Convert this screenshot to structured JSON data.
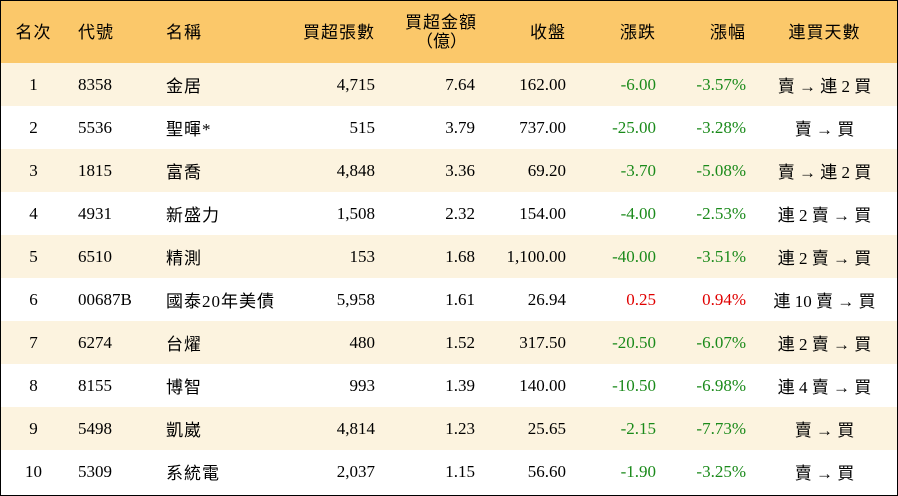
{
  "headers": {
    "rank": "名次",
    "code": "代號",
    "name": "名稱",
    "net_buy_lots": "買超張數",
    "net_buy_amount": "買超金額",
    "net_buy_amount_unit": "（億）",
    "close": "收盤",
    "change": "漲跌",
    "change_pct": "漲幅",
    "consecutive_days": "連買天數"
  },
  "rows": [
    {
      "rank": "1",
      "code": "8358",
      "name": "金居",
      "lots": "4,715",
      "amount": "7.64",
      "close": "162.00",
      "change": "-6.00",
      "pct": "-3.57%",
      "days": "賣 → 連 2 買",
      "dir": "neg"
    },
    {
      "rank": "2",
      "code": "5536",
      "name": "聖暉*",
      "lots": "515",
      "amount": "3.79",
      "close": "737.00",
      "change": "-25.00",
      "pct": "-3.28%",
      "days": "賣 → 買",
      "dir": "neg"
    },
    {
      "rank": "3",
      "code": "1815",
      "name": "富喬",
      "lots": "4,848",
      "amount": "3.36",
      "close": "69.20",
      "change": "-3.70",
      "pct": "-5.08%",
      "days": "賣 → 連 2 買",
      "dir": "neg"
    },
    {
      "rank": "4",
      "code": "4931",
      "name": "新盛力",
      "lots": "1,508",
      "amount": "2.32",
      "close": "154.00",
      "change": "-4.00",
      "pct": "-2.53%",
      "days": "連 2 賣 → 買",
      "dir": "neg"
    },
    {
      "rank": "5",
      "code": "6510",
      "name": "精測",
      "lots": "153",
      "amount": "1.68",
      "close": "1,100.00",
      "change": "-40.00",
      "pct": "-3.51%",
      "days": "連 2 賣 → 買",
      "dir": "neg"
    },
    {
      "rank": "6",
      "code": "00687B",
      "name": "國泰20年美債",
      "lots": "5,958",
      "amount": "1.61",
      "close": "26.94",
      "change": "0.25",
      "pct": "0.94%",
      "days": "連 10 賣 → 買",
      "dir": "pos"
    },
    {
      "rank": "7",
      "code": "6274",
      "name": "台燿",
      "lots": "480",
      "amount": "1.52",
      "close": "317.50",
      "change": "-20.50",
      "pct": "-6.07%",
      "days": "連 2 賣 → 買",
      "dir": "neg"
    },
    {
      "rank": "8",
      "code": "8155",
      "name": "博智",
      "lots": "993",
      "amount": "1.39",
      "close": "140.00",
      "change": "-10.50",
      "pct": "-6.98%",
      "days": "連 4 賣 → 買",
      "dir": "neg"
    },
    {
      "rank": "9",
      "code": "5498",
      "name": "凱崴",
      "lots": "4,814",
      "amount": "1.23",
      "close": "25.65",
      "change": "-2.15",
      "pct": "-7.73%",
      "days": "賣 → 買",
      "dir": "neg"
    },
    {
      "rank": "10",
      "code": "5309",
      "name": "系統電",
      "lots": "2,037",
      "amount": "1.15",
      "close": "56.60",
      "change": "-1.90",
      "pct": "-3.25%",
      "days": "賣 → 買",
      "dir": "neg"
    }
  ],
  "colors": {
    "header_bg": "#fbc86a",
    "row_stripe": "#fcf3df",
    "negative": "#1a8a1a",
    "positive": "#e00000"
  }
}
